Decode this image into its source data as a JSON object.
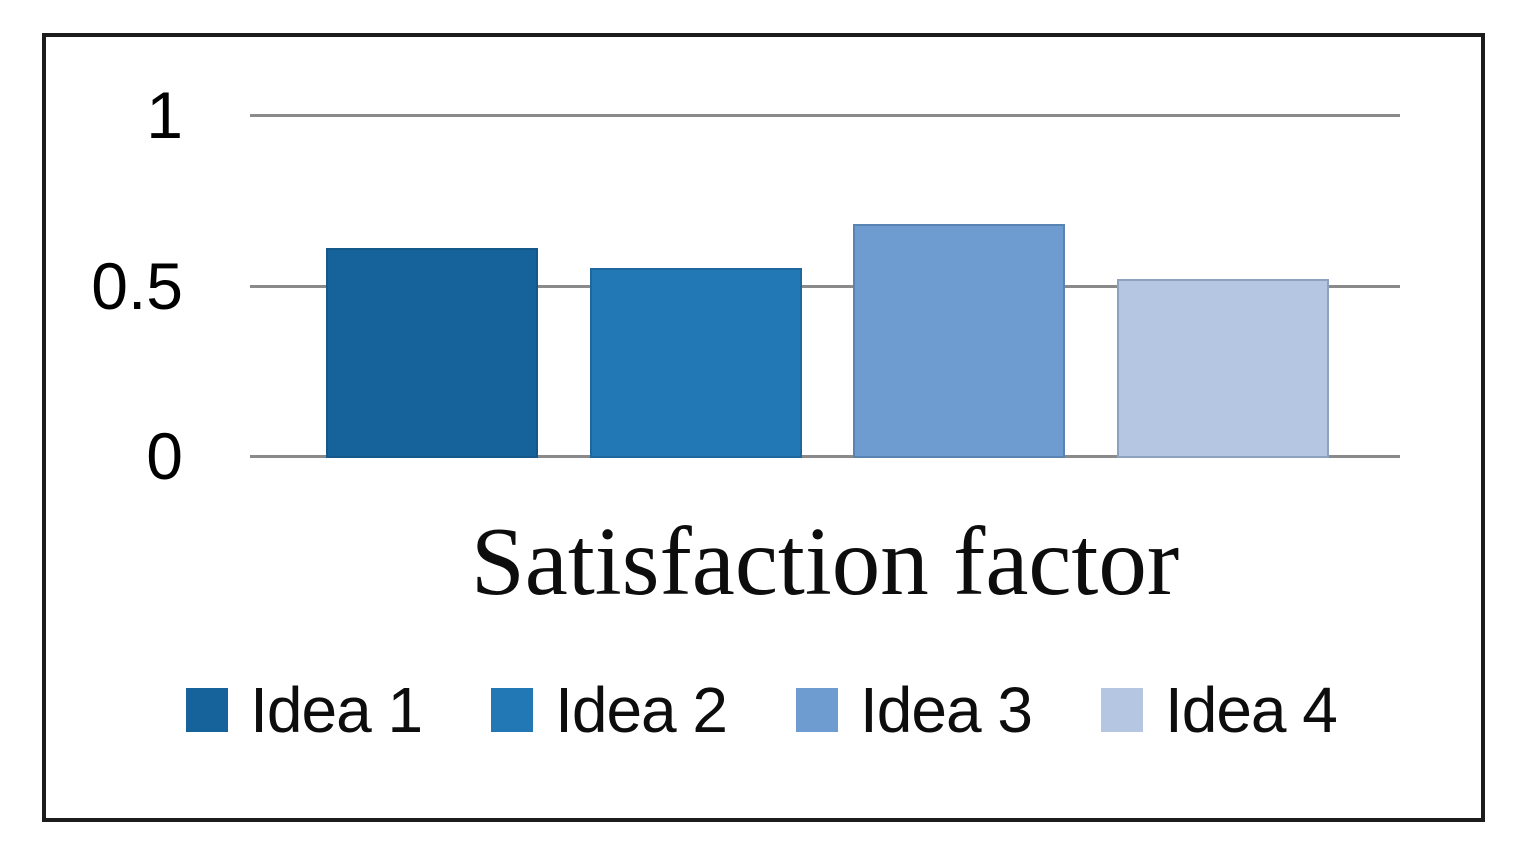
{
  "chart_data": {
    "type": "bar",
    "title": "Satisfaction factor",
    "categories": [
      "Idea 1",
      "Idea 2",
      "Idea 3",
      "Idea 4"
    ],
    "values": [
      0.61,
      0.55,
      0.68,
      0.52
    ],
    "bar_colors": [
      "#15639A",
      "#2278B5",
      "#6F9CD0",
      "#B4C6E1"
    ],
    "ylim": [
      0,
      1
    ],
    "yticks": [
      {
        "value": 1,
        "label": "1"
      },
      {
        "value": 0.5,
        "label": "0.5"
      },
      {
        "value": 0,
        "label": "0"
      }
    ],
    "grid": true,
    "legend_position": "bottom",
    "legend": [
      {
        "label": "Idea 1",
        "color": "#15639A"
      },
      {
        "label": "Idea 2",
        "color": "#2278B5"
      },
      {
        "label": "Idea 3",
        "color": "#6F9CD0"
      },
      {
        "label": "Idea 4",
        "color": "#B4C6E1"
      }
    ],
    "style_colors": {
      "gridline": "#8A8A8A",
      "frame_border": "#1C1C1C",
      "text": "#000000"
    }
  }
}
